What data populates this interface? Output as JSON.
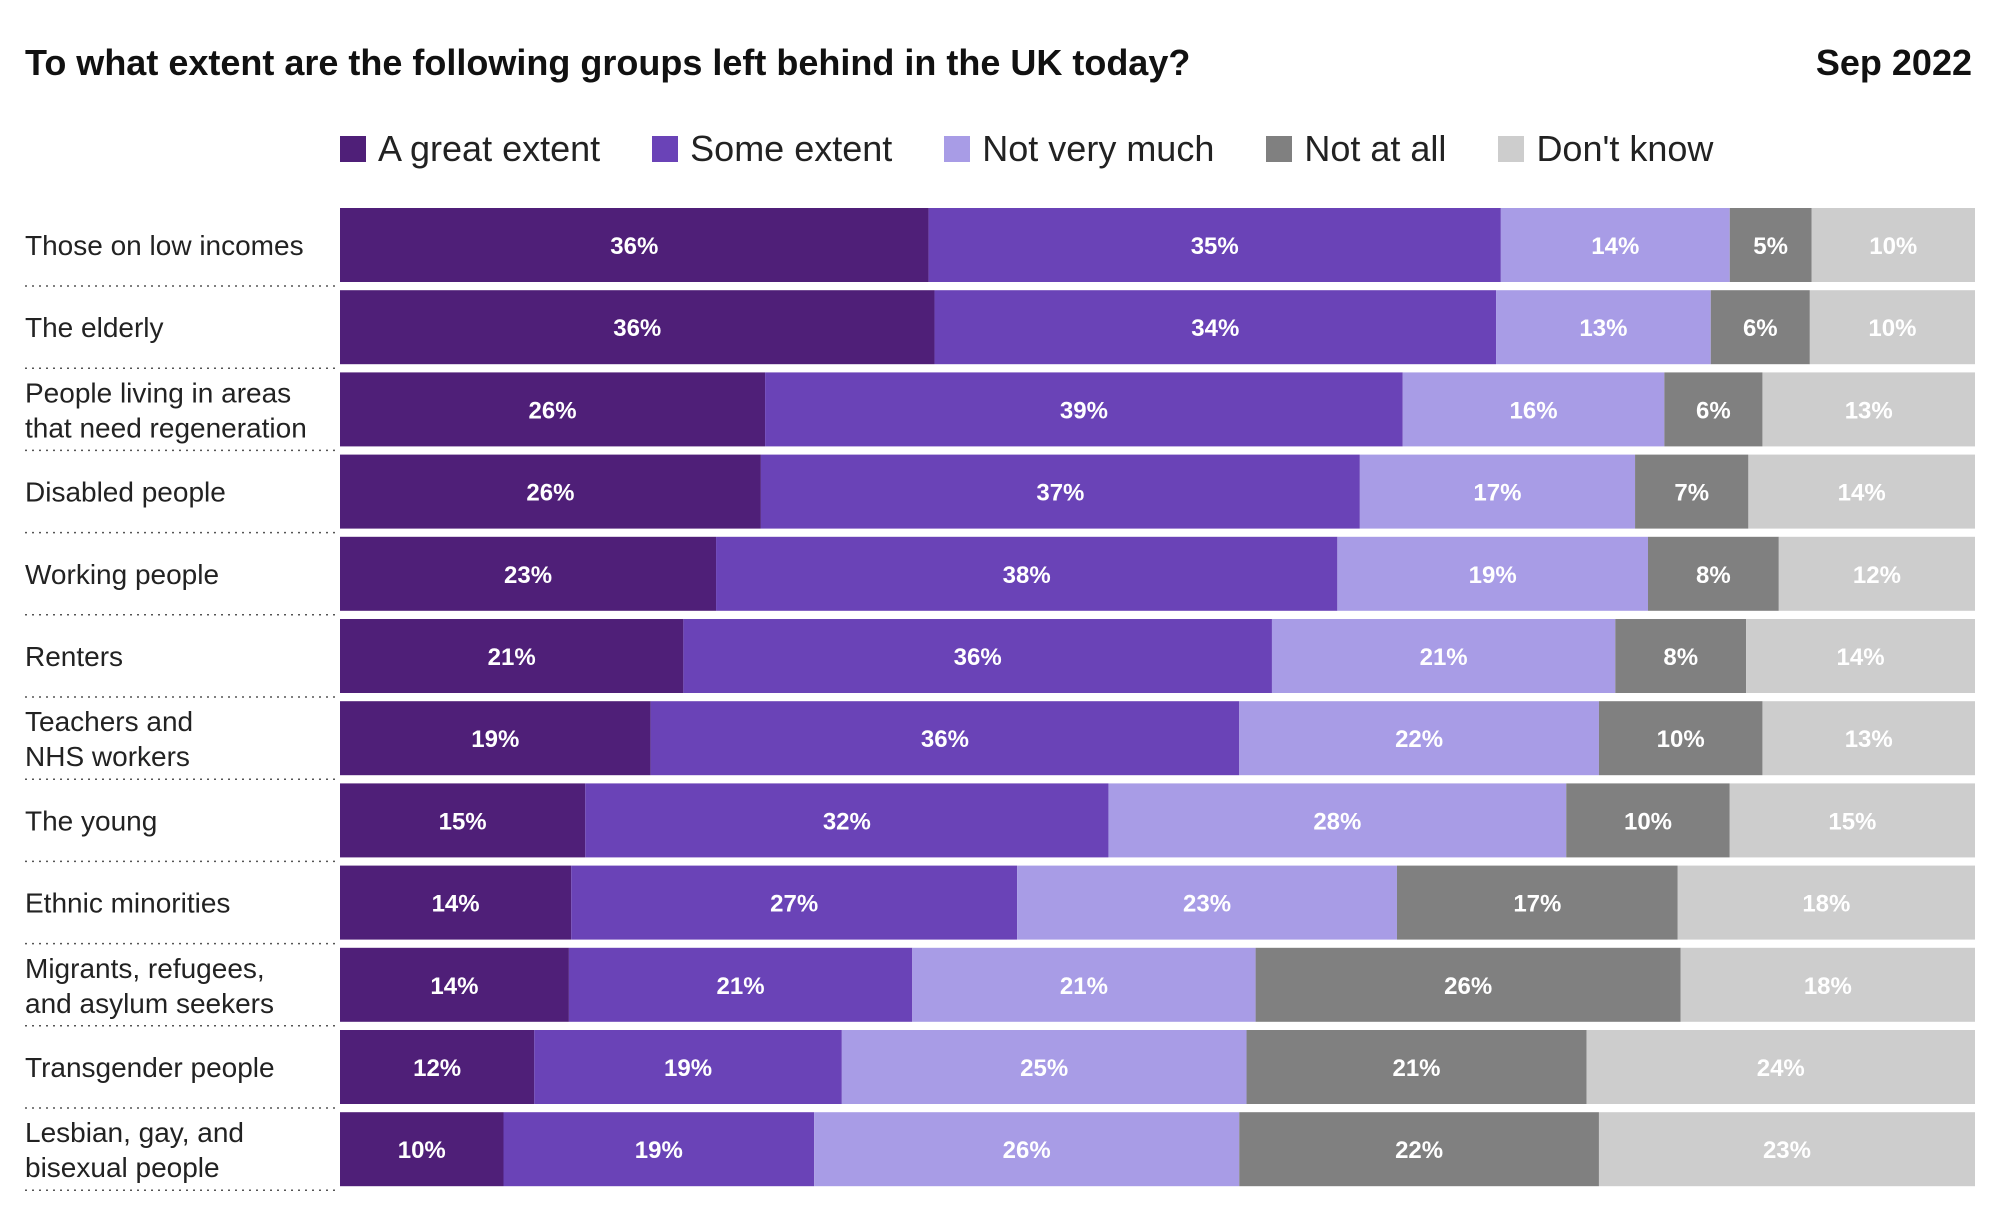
{
  "title": "To what extent are the following groups left behind in the UK today?",
  "date": "Sep 2022",
  "colors": {
    "a_great_extent": "#4f1f78",
    "some_extent": "#6a43b7",
    "not_very_much": "#a89ce6",
    "not_at_all": "#808080",
    "dont_know": "#cdcdcd"
  },
  "chart_data": {
    "type": "bar",
    "orientation": "horizontal",
    "stacked": true,
    "title": "To what extent are the following groups left behind in the UK today?",
    "xlabel": "",
    "ylabel": "",
    "legend_position": "top",
    "grid": false,
    "categories": [
      "Those on low incomes",
      "The elderly",
      "People living in areas that need regeneration",
      "Disabled people",
      "Working people",
      "Renters",
      "Teachers and NHS workers",
      "The young",
      "Ethnic minorities",
      "Migrants, refugees, and asylum seekers",
      "Transgender people",
      "Lesbian, gay, and bisexual people"
    ],
    "category_lines": [
      [
        "Those on low incomes"
      ],
      [
        "The elderly"
      ],
      [
        "People living in areas",
        "that need regeneration"
      ],
      [
        "Disabled people"
      ],
      [
        "Working people"
      ],
      [
        "Renters"
      ],
      [
        "Teachers and",
        "NHS workers"
      ],
      [
        "The young"
      ],
      [
        "Ethnic minorities"
      ],
      [
        "Migrants, refugees,",
        "and asylum seekers"
      ],
      [
        "Transgender people"
      ],
      [
        "Lesbian, gay, and",
        "bisexual people"
      ]
    ],
    "series": [
      {
        "name": "A great extent",
        "color": "#4f1f78",
        "values": [
          36,
          36,
          26,
          26,
          23,
          21,
          19,
          15,
          14,
          14,
          12,
          10
        ]
      },
      {
        "name": "Some extent",
        "color": "#6a43b7",
        "values": [
          35,
          34,
          39,
          37,
          38,
          36,
          36,
          32,
          27,
          21,
          19,
          19
        ]
      },
      {
        "name": "Not very much",
        "color": "#a89ce6",
        "values": [
          14,
          13,
          16,
          17,
          19,
          21,
          22,
          28,
          23,
          21,
          25,
          26
        ]
      },
      {
        "name": "Not at all",
        "color": "#808080",
        "values": [
          5,
          6,
          6,
          7,
          8,
          8,
          10,
          10,
          17,
          26,
          21,
          22
        ]
      },
      {
        "name": "Don't know",
        "color": "#cdcdcd",
        "values": [
          10,
          10,
          13,
          14,
          12,
          14,
          13,
          15,
          18,
          18,
          24,
          23
        ]
      }
    ]
  }
}
